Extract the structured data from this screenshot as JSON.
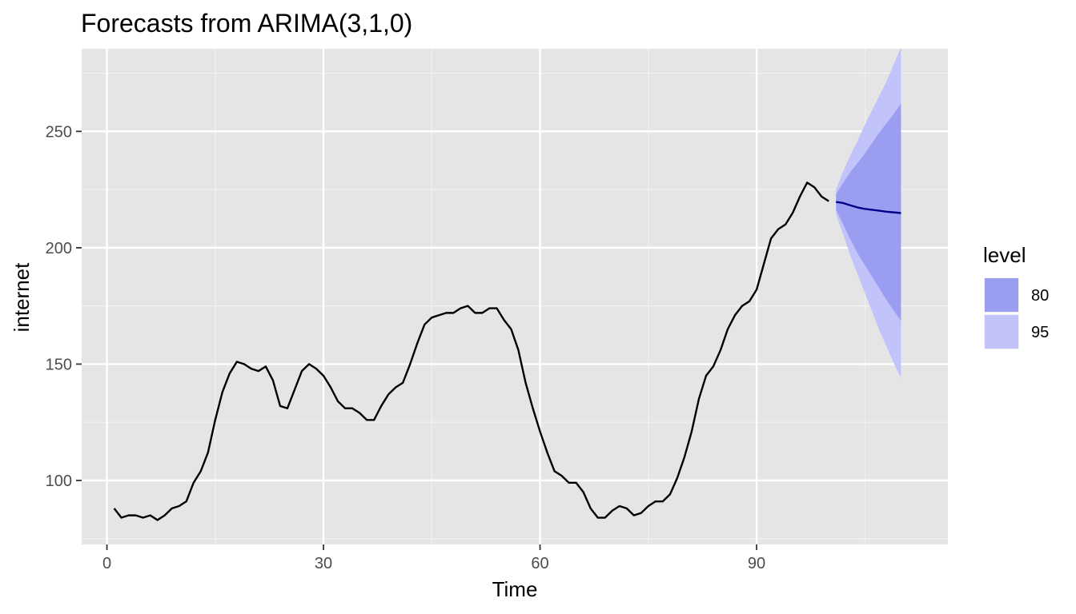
{
  "chart_data": {
    "type": "line",
    "title": "Forecasts from ARIMA(3,1,0)",
    "xlabel": "Time",
    "ylabel": "internet",
    "xlim": [
      -3.5,
      116.5
    ],
    "ylim": [
      72.5,
      285.5
    ],
    "x_ticks": [
      0,
      30,
      60,
      90
    ],
    "x_tick_labels": [
      "0",
      "30",
      "60",
      "90"
    ],
    "y_ticks": [
      100,
      150,
      200,
      250
    ],
    "y_tick_labels": [
      "100",
      "150",
      "200",
      "250"
    ],
    "grid": true,
    "legend_position": "right",
    "series": [
      {
        "kind": "observed",
        "color": "#000000",
        "x": [
          1,
          2,
          3,
          4,
          5,
          6,
          7,
          8,
          9,
          10,
          11,
          12,
          13,
          14,
          15,
          16,
          17,
          18,
          19,
          20,
          21,
          22,
          23,
          24,
          25,
          26,
          27,
          28,
          29,
          30,
          31,
          32,
          33,
          34,
          35,
          36,
          37,
          38,
          39,
          40,
          41,
          42,
          43,
          44,
          45,
          46,
          47,
          48,
          49,
          50,
          51,
          52,
          53,
          54,
          55,
          56,
          57,
          58,
          59,
          60,
          61,
          62,
          63,
          64,
          65,
          66,
          67,
          68,
          69,
          70,
          71,
          72,
          73,
          74,
          75,
          76,
          77,
          78,
          79,
          80,
          81,
          82,
          83,
          84,
          85,
          86,
          87,
          88,
          89,
          90,
          91,
          92,
          93,
          94,
          95,
          96,
          97,
          98,
          99,
          100
        ],
        "values": [
          88,
          84,
          85,
          85,
          84,
          85,
          83,
          85,
          88,
          89,
          91,
          99,
          104,
          112,
          126,
          138,
          146,
          151,
          150,
          148,
          147,
          149,
          143,
          132,
          131,
          139,
          147,
          150,
          148,
          145,
          140,
          134,
          131,
          131,
          129,
          126,
          126,
          132,
          137,
          140,
          142,
          150,
          159,
          167,
          170,
          171,
          172,
          172,
          174,
          175,
          172,
          172,
          174,
          174,
          169,
          165,
          156,
          142,
          131,
          121,
          112,
          104,
          102,
          99,
          99,
          95,
          88,
          84,
          84,
          87,
          89,
          88,
          85,
          86,
          89,
          91,
          91,
          94,
          101,
          110,
          121,
          135,
          145,
          149,
          156,
          165,
          171,
          175,
          177,
          182,
          193,
          204,
          208,
          210,
          215,
          222,
          228,
          226,
          222,
          220
        ]
      },
      {
        "kind": "forecast",
        "color": "#00008b",
        "x": [
          101,
          102,
          103,
          104,
          105,
          106,
          107,
          108,
          109,
          110
        ],
        "values": [
          219.7,
          219.2,
          218.2,
          217.3,
          216.7,
          216.3,
          215.9,
          215.5,
          215.2,
          214.9
        ]
      }
    ],
    "intervals": [
      {
        "level": "95",
        "color": "#c3c3fb",
        "x": [
          101,
          102,
          103,
          104,
          105,
          106,
          107,
          108,
          109,
          110
        ],
        "lower": [
          214.5,
          205.5,
          196.5,
          188.5,
          180.5,
          172.5,
          164.5,
          157.5,
          150.5,
          144.0
        ],
        "upper": [
          224.9,
          232.9,
          239.9,
          246.1,
          252.9,
          259.1,
          265.3,
          271.5,
          278.9,
          286.0
        ]
      },
      {
        "level": "80",
        "color": "#9b9ef0",
        "x": [
          101,
          102,
          103,
          104,
          105,
          106,
          107,
          108,
          109,
          110
        ],
        "lower": [
          216.3,
          210.0,
          203.5,
          197.5,
          192.5,
          187.5,
          182.5,
          177.5,
          173.0,
          168.5
        ],
        "upper": [
          223.0,
          228.0,
          232.5,
          236.5,
          240.5,
          245.0,
          249.5,
          253.5,
          257.5,
          262.0
        ]
      }
    ],
    "legend": {
      "title": "level",
      "entries": [
        {
          "label": "80",
          "color": "#9b9ef0"
        },
        {
          "label": "95",
          "color": "#c3c3fb"
        }
      ]
    }
  },
  "colors": {
    "panel_background": "#e5e5e5",
    "grid_major": "#ffffff",
    "grid_minor": "#f2f2f2",
    "tick_text": "#4d4d4d"
  }
}
